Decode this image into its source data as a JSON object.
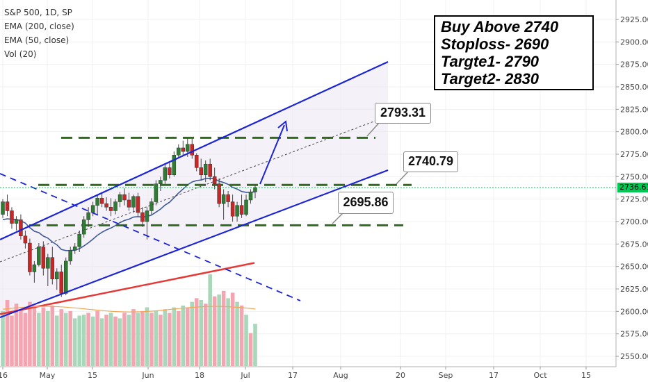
{
  "legend": {
    "symbol": "S&P 500, 1D, SP",
    "ema200": "EMA (200, close)",
    "ema50": "EMA (50, close)",
    "vol": "Vol (20)"
  },
  "trade_box": {
    "line1": "Buy Above 2740",
    "line2": "Stoploss- 2690",
    "line3": "Targte1- 2790",
    "line4": "Target2- 2830"
  },
  "callouts": {
    "c1": "2793.31",
    "c2": "2740.79",
    "c3": "2695.86"
  },
  "current_price": "2736.61",
  "colors": {
    "up": "#2e7d32",
    "down": "#c62828",
    "channel": "#1a23d6",
    "ema200": "#e53935",
    "ema50": "#3d5a99",
    "level": "#2e6b1f",
    "price_line": "#00c853",
    "vol_up": "#a8d8b9",
    "vol_down": "#f3a6b1"
  },
  "chart_data": {
    "type": "candlestick",
    "title": "S&P 500, 1D, SP",
    "ylim": [
      2540,
      2935
    ],
    "y_ticks": [
      "2550.00",
      "2575.00",
      "2600.00",
      "2625.00",
      "2650.00",
      "2675.00",
      "2700.00",
      "2725.00",
      "2750.00",
      "2775.00",
      "2800.00",
      "2825.00",
      "2850.00",
      "2875.00",
      "2900.00",
      "2925.00"
    ],
    "x_ticks": [
      "16",
      "May",
      "15",
      "Jun",
      "18",
      "Jul",
      "17",
      "Aug",
      "20",
      "Sep",
      "17",
      "Oct",
      "15"
    ],
    "levels": [
      2793.31,
      2740.79,
      2695.86
    ],
    "candles": [
      [
        2708,
        2725,
        2704,
        2722
      ],
      [
        2722,
        2730,
        2706,
        2712
      ],
      [
        2712,
        2716,
        2692,
        2698
      ],
      [
        2698,
        2706,
        2690,
        2702
      ],
      [
        2702,
        2708,
        2680,
        2684
      ],
      [
        2684,
        2690,
        2670,
        2676
      ],
      [
        2676,
        2681,
        2640,
        2644
      ],
      [
        2644,
        2656,
        2632,
        2652
      ],
      [
        2652,
        2676,
        2650,
        2672
      ],
      [
        2672,
        2678,
        2640,
        2648
      ],
      [
        2648,
        2664,
        2628,
        2660
      ],
      [
        2660,
        2672,
        2630,
        2636
      ],
      [
        2636,
        2648,
        2624,
        2644
      ],
      [
        2644,
        2652,
        2616,
        2620
      ],
      [
        2620,
        2660,
        2618,
        2656
      ],
      [
        2656,
        2672,
        2652,
        2668
      ],
      [
        2668,
        2676,
        2664,
        2672
      ],
      [
        2672,
        2690,
        2666,
        2686
      ],
      [
        2686,
        2706,
        2682,
        2702
      ],
      [
        2702,
        2716,
        2694,
        2710
      ],
      [
        2710,
        2722,
        2706,
        2718
      ],
      [
        2718,
        2730,
        2708,
        2726
      ],
      [
        2726,
        2732,
        2716,
        2720
      ],
      [
        2720,
        2727,
        2712,
        2716
      ],
      [
        2716,
        2726,
        2706,
        2712
      ],
      [
        2712,
        2725,
        2708,
        2722
      ],
      [
        2722,
        2733,
        2716,
        2730
      ],
      [
        2730,
        2737,
        2718,
        2724
      ],
      [
        2724,
        2732,
        2712,
        2716
      ],
      [
        2716,
        2730,
        2710,
        2728
      ],
      [
        2728,
        2732,
        2706,
        2710
      ],
      [
        2710,
        2716,
        2694,
        2700
      ],
      [
        2700,
        2716,
        2680,
        2712
      ],
      [
        2712,
        2726,
        2708,
        2722
      ],
      [
        2722,
        2746,
        2718,
        2742
      ],
      [
        2742,
        2750,
        2734,
        2746
      ],
      [
        2746,
        2764,
        2742,
        2760
      ],
      [
        2760,
        2766,
        2748,
        2752
      ],
      [
        2752,
        2778,
        2750,
        2774
      ],
      [
        2774,
        2786,
        2770,
        2782
      ],
      [
        2782,
        2790,
        2774,
        2778
      ],
      [
        2778,
        2793,
        2772,
        2786
      ],
      [
        2786,
        2792,
        2770,
        2774
      ],
      [
        2774,
        2776,
        2756,
        2760
      ],
      [
        2760,
        2770,
        2746,
        2752
      ],
      [
        2752,
        2768,
        2744,
        2764
      ],
      [
        2764,
        2770,
        2746,
        2750
      ],
      [
        2750,
        2760,
        2736,
        2742
      ],
      [
        2742,
        2748,
        2716,
        2720
      ],
      [
        2720,
        2736,
        2702,
        2730
      ],
      [
        2730,
        2734,
        2716,
        2722
      ],
      [
        2722,
        2730,
        2700,
        2706
      ],
      [
        2706,
        2722,
        2700,
        2718
      ],
      [
        2718,
        2730,
        2704,
        2708
      ],
      [
        2708,
        2730,
        2706,
        2724
      ],
      [
        2724,
        2736,
        2720,
        2733
      ],
      [
        2733,
        2741,
        2726,
        2738
      ]
    ],
    "volume": [
      [
        "up",
        0.6
      ],
      [
        "down",
        0.72
      ],
      [
        "down",
        0.55
      ],
      [
        "down",
        0.68
      ],
      [
        "down",
        0.62
      ],
      [
        "down",
        0.58
      ],
      [
        "down",
        0.7
      ],
      [
        "down",
        0.66
      ],
      [
        "up",
        0.58
      ],
      [
        "down",
        0.64
      ],
      [
        "up",
        0.6
      ],
      [
        "down",
        0.66
      ],
      [
        "up",
        0.55
      ],
      [
        "down",
        0.62
      ],
      [
        "up",
        0.58
      ],
      [
        "down",
        0.6
      ],
      [
        "up",
        0.52
      ],
      [
        "up",
        0.55
      ],
      [
        "up",
        0.56
      ],
      [
        "down",
        0.58
      ],
      [
        "up",
        0.54
      ],
      [
        "down",
        0.6
      ],
      [
        "up",
        0.52
      ],
      [
        "down",
        0.56
      ],
      [
        "up",
        0.58
      ],
      [
        "down",
        0.54
      ],
      [
        "up",
        0.52
      ],
      [
        "down",
        0.58
      ],
      [
        "up",
        0.56
      ],
      [
        "down",
        0.62
      ],
      [
        "up",
        0.58
      ],
      [
        "down",
        0.6
      ],
      [
        "up",
        0.64
      ],
      [
        "down",
        0.58
      ],
      [
        "up",
        0.6
      ],
      [
        "down",
        0.56
      ],
      [
        "up",
        0.62
      ],
      [
        "down",
        0.58
      ],
      [
        "up",
        0.64
      ],
      [
        "down",
        0.6
      ],
      [
        "up",
        0.66
      ],
      [
        "down",
        0.64
      ],
      [
        "up",
        0.7
      ],
      [
        "down",
        0.74
      ],
      [
        "up",
        0.72
      ],
      [
        "down",
        0.68
      ],
      [
        "up",
        1.0
      ],
      [
        "down",
        0.76
      ],
      [
        "up",
        0.78
      ],
      [
        "down",
        0.82
      ],
      [
        "up",
        0.74
      ],
      [
        "down",
        0.8
      ],
      [
        "up",
        0.7
      ],
      [
        "down",
        0.66
      ],
      [
        "up",
        0.56
      ],
      [
        "down",
        0.36
      ],
      [
        "up",
        0.46
      ]
    ]
  }
}
